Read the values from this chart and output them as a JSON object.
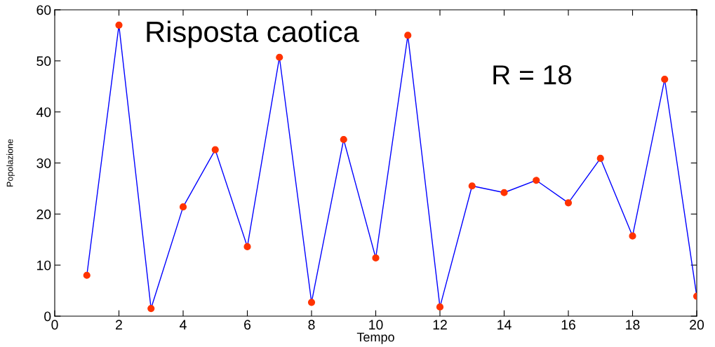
{
  "chart_data": {
    "type": "line",
    "xlabel": "Tempo",
    "ylabel": "Popolazione",
    "annotations": [
      "Risposta caotica",
      "R = 18"
    ],
    "x": [
      1,
      2,
      3,
      4,
      5,
      6,
      7,
      8,
      9,
      10,
      11,
      12,
      13,
      14,
      15,
      16,
      17,
      18,
      19,
      20
    ],
    "series": [
      {
        "color": "#0000ff",
        "colors": [
          "#ff3300",
          "#ff3300",
          "#ff3300",
          "#ff3300",
          "#ff3300",
          "#ff3300",
          "#ff3300",
          "#ff3300",
          "#ff3300",
          "#ff3300",
          "#ff3300",
          "#ff3300",
          "#ff3300",
          "#ff3300",
          "#ff3300",
          "#ff3300",
          "#ff3300",
          "#ff3300",
          "#ff3300",
          "#ff3300"
        ],
        "values": [
          8,
          57,
          1.5,
          21.4,
          32.6,
          13.6,
          50.7,
          2.7,
          34.6,
          11.4,
          55,
          1.8,
          25.5,
          24.2,
          26.6,
          22.2,
          30.9,
          15.7,
          46.4,
          3.9
        ]
      }
    ],
    "marker": "circle",
    "line_style": "solid",
    "grid": false,
    "legend": false,
    "xlim": [
      0,
      20
    ],
    "xticks": [
      0,
      2,
      4,
      6,
      8,
      10,
      12,
      14,
      16,
      18,
      20
    ],
    "ylim": [
      0,
      60
    ],
    "yticks": [
      0,
      10,
      20,
      30,
      40,
      50,
      60
    ]
  }
}
